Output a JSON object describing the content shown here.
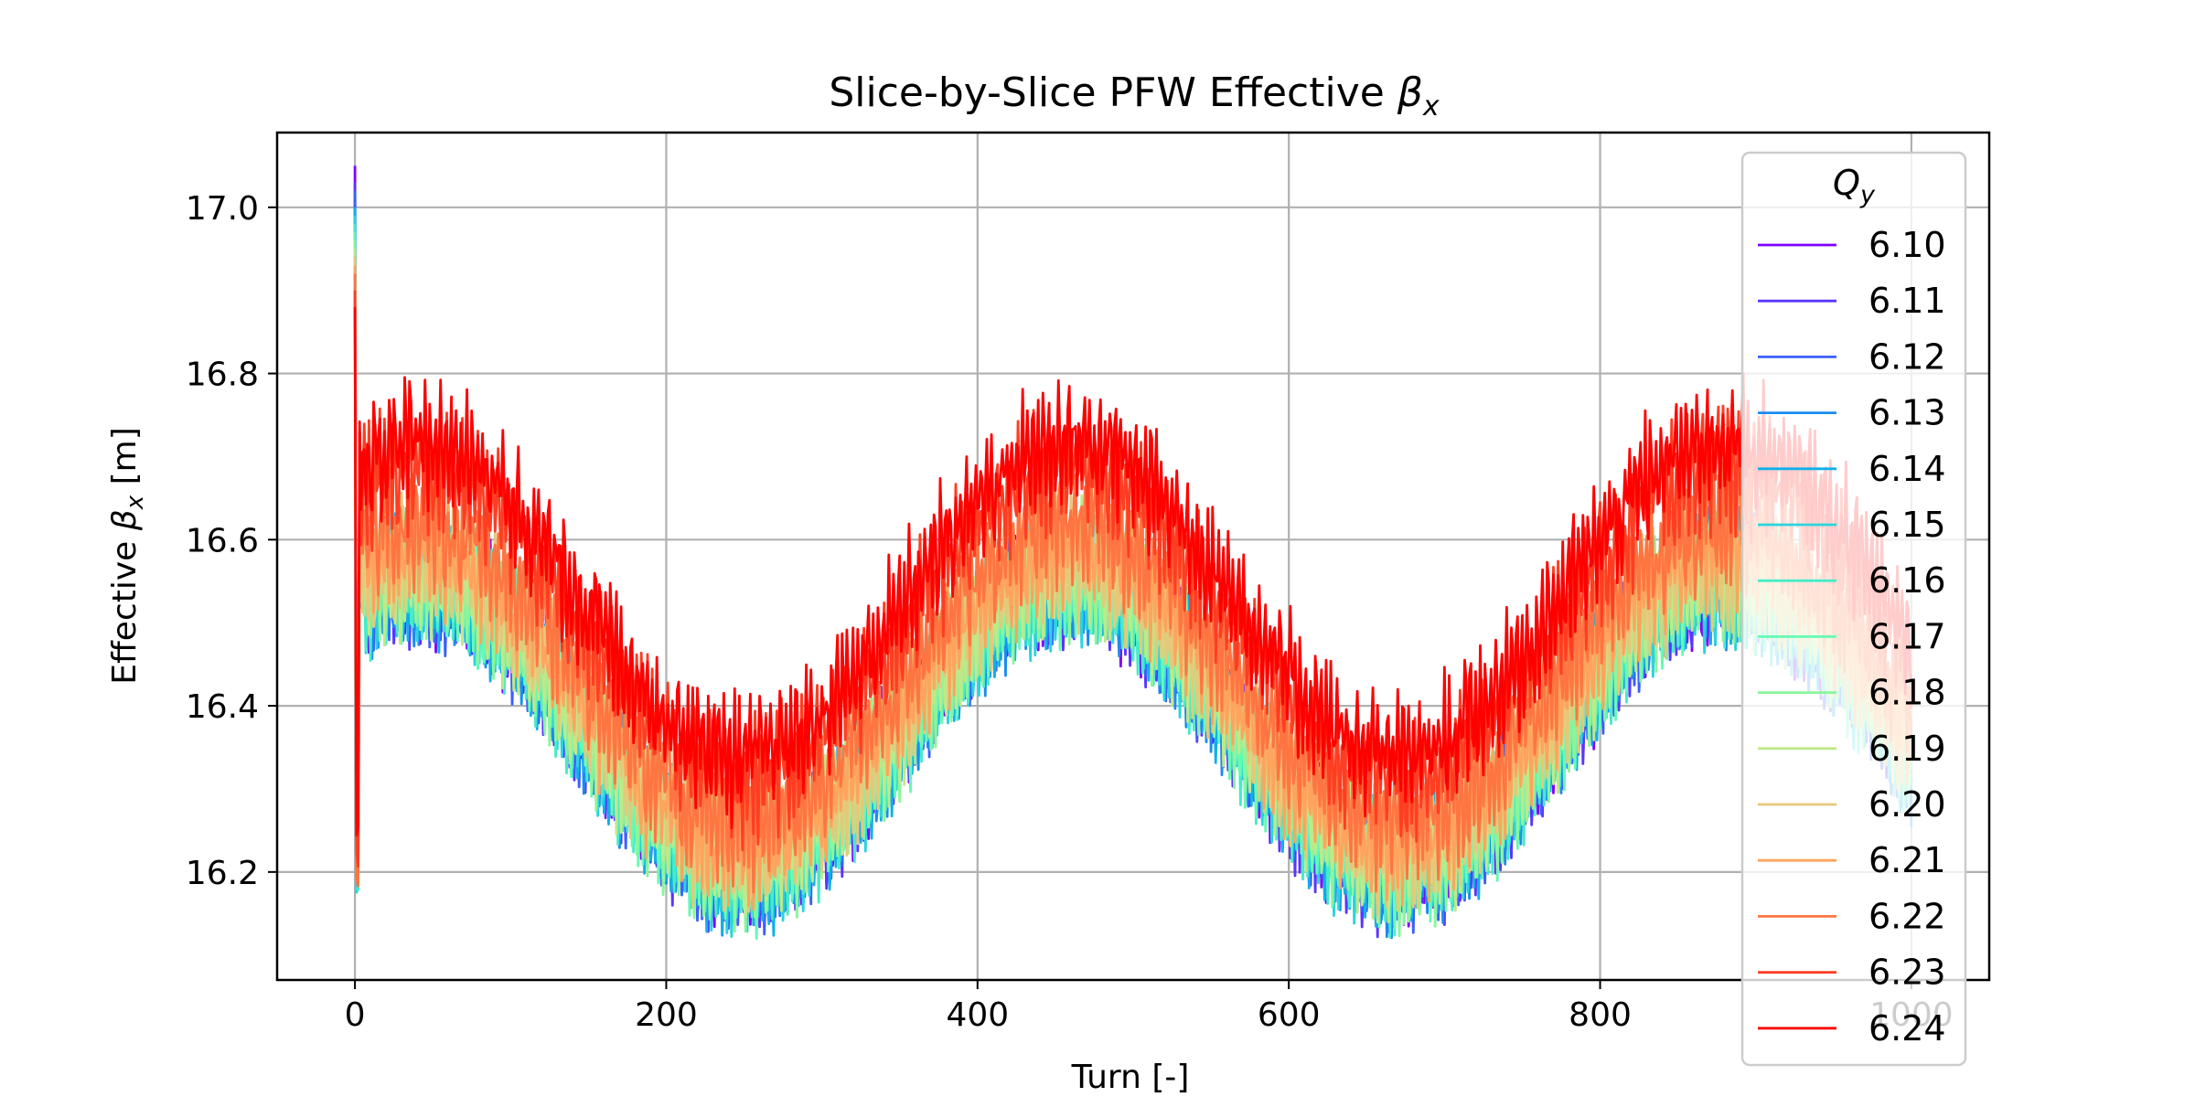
{
  "chart_data": {
    "type": "line",
    "title_prefix": "Slice-by-Slice PFW Effective ",
    "title_symbol": "β",
    "title_sub": "x",
    "ylabel_prefix": "Effective ",
    "ylabel_symbol": "β",
    "ylabel_sub": "x",
    "ylabel_suffix": " [m]",
    "xlabel": "Turn [-]",
    "xlim": [
      -50,
      1050
    ],
    "ylim": [
      16.07,
      17.09
    ],
    "xticks": [
      0,
      200,
      400,
      600,
      800,
      1000
    ],
    "xtick_labels": [
      "0",
      "200",
      "400",
      "600",
      "800",
      "1000"
    ],
    "yticks": [
      16.2,
      16.4,
      16.6,
      16.8,
      17.0
    ],
    "ytick_labels": [
      "16.2",
      "16.4",
      "16.6",
      "16.8",
      "17.0"
    ],
    "grid": true,
    "legend": {
      "title_symbol": "Q",
      "title_sub": "y",
      "placement": "upper right"
    },
    "x_range": [
      0,
      1000
    ],
    "series": [
      {
        "name": "6.10",
        "color": "#8000ff",
        "mean": 16.38,
        "amplitude": 0.175,
        "ripple": 0.05,
        "start": 17.05
      },
      {
        "name": "6.11",
        "color": "#5a35ff",
        "mean": 16.38,
        "amplitude": 0.175,
        "ripple": 0.05,
        "start": 17.03
      },
      {
        "name": "6.12",
        "color": "#3a5fff",
        "mean": 16.38,
        "amplitude": 0.175,
        "ripple": 0.05,
        "start": 17.02
      },
      {
        "name": "6.13",
        "color": "#1a8cf0",
        "mean": 16.38,
        "amplitude": 0.175,
        "ripple": 0.05,
        "start": 17.0
      },
      {
        "name": "6.14",
        "color": "#10b0e8",
        "mean": 16.38,
        "amplitude": 0.175,
        "ripple": 0.05,
        "start": 17.0
      },
      {
        "name": "6.15",
        "color": "#2ad4dd",
        "mean": 16.38,
        "amplitude": 0.175,
        "ripple": 0.05,
        "start": 16.99
      },
      {
        "name": "6.16",
        "color": "#45ecc8",
        "mean": 16.38,
        "amplitude": 0.175,
        "ripple": 0.05,
        "start": 16.98
      },
      {
        "name": "6.17",
        "color": "#65fab3",
        "mean": 16.38,
        "amplitude": 0.175,
        "ripple": 0.05,
        "start": 16.97
      },
      {
        "name": "6.18",
        "color": "#8cf59a",
        "mean": 16.385,
        "amplitude": 0.175,
        "ripple": 0.05,
        "start": 16.96
      },
      {
        "name": "6.19",
        "color": "#c0e889",
        "mean": 16.39,
        "amplitude": 0.175,
        "ripple": 0.05,
        "start": 16.95
      },
      {
        "name": "6.20",
        "color": "#e6c87a",
        "mean": 16.4,
        "amplitude": 0.175,
        "ripple": 0.05,
        "start": 16.94
      },
      {
        "name": "6.21",
        "color": "#ffa35d",
        "mean": 16.41,
        "amplitude": 0.18,
        "ripple": 0.05,
        "start": 16.93
      },
      {
        "name": "6.22",
        "color": "#ff7542",
        "mean": 16.44,
        "amplitude": 0.18,
        "ripple": 0.05,
        "start": 16.92
      },
      {
        "name": "6.23",
        "color": "#ff3d22",
        "mean": 16.5,
        "amplitude": 0.185,
        "ripple": 0.05,
        "start": 16.9
      },
      {
        "name": "6.24",
        "color": "#ff0000",
        "mean": 16.53,
        "amplitude": 0.19,
        "ripple": 0.05,
        "start": 16.88
      }
    ]
  }
}
